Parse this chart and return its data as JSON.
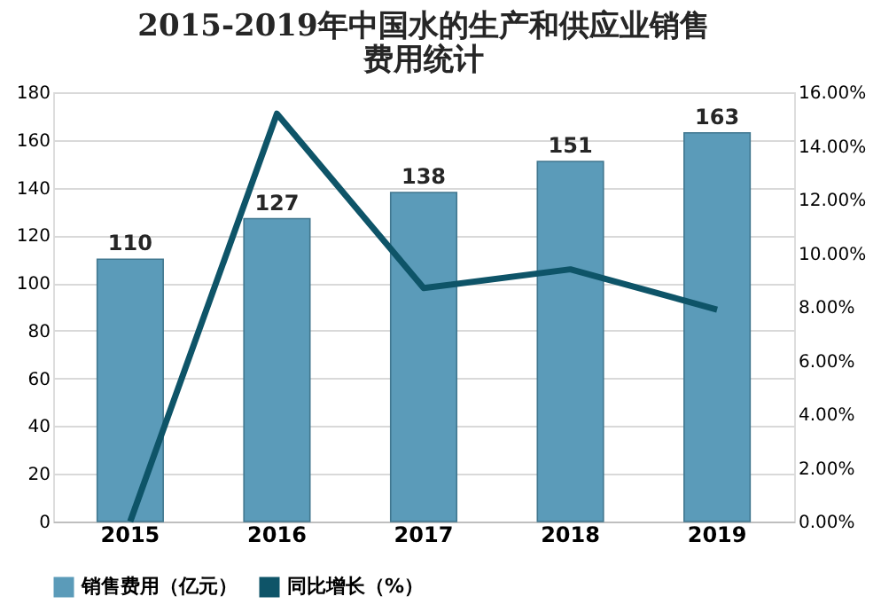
{
  "chart_data": {
    "type": "bar",
    "title": "2015-2019年中国水的生产和供应业销售费用统计",
    "categories": [
      "2015",
      "2016",
      "2017",
      "2018",
      "2019"
    ],
    "series": [
      {
        "name": "销售费用（亿元）",
        "color": "#5b9bb9",
        "values": [
          110,
          127,
          138,
          151,
          163
        ],
        "value_labels": [
          "110",
          "127",
          "138",
          "151",
          "163"
        ]
      },
      {
        "name": "同比增长（%）",
        "type": "line",
        "axis": "y2",
        "color": "#0e5468",
        "values": [
          0,
          15.2,
          8.7,
          9.4,
          7.9
        ]
      }
    ],
    "ylim": [
      0,
      180
    ],
    "yticks": [
      0,
      20,
      40,
      60,
      80,
      100,
      120,
      140,
      160,
      180
    ],
    "y2lim": [
      0,
      16
    ],
    "y2ticks": [
      {
        "value": 0,
        "label": "0.00%"
      },
      {
        "value": 2,
        "label": "2.00%"
      },
      {
        "value": 4,
        "label": "4.00%"
      },
      {
        "value": 6,
        "label": "6.00%"
      },
      {
        "value": 8,
        "label": "8.00%"
      },
      {
        "value": 10,
        "label": "10.00%"
      },
      {
        "value": 12,
        "label": "12.00%"
      },
      {
        "value": 14,
        "label": "14.00%"
      },
      {
        "value": 16,
        "label": "16.00%"
      }
    ],
    "grid": "y",
    "legend": "bottom",
    "marker": "none",
    "line_style": "solid"
  }
}
